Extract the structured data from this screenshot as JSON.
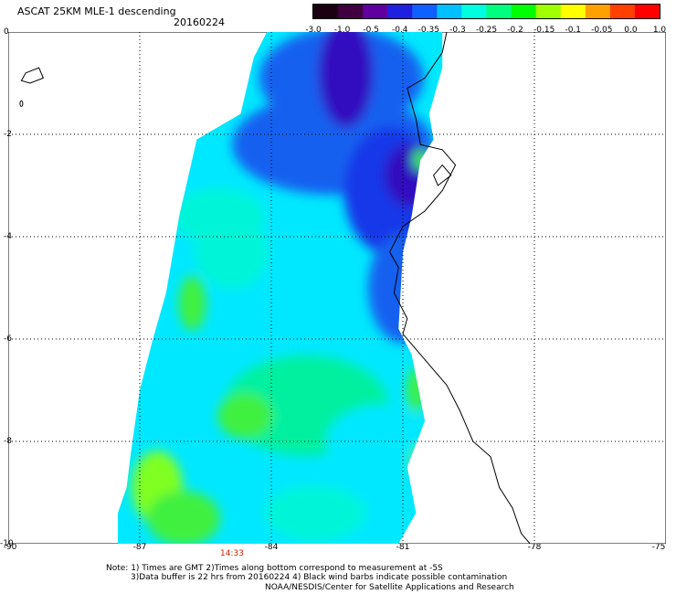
{
  "title": "ASCAT 25KM MLE-1 descending",
  "date": "20160224",
  "colorbar": {
    "labels": [
      "-3.0",
      "-1.0",
      "-0.5",
      "-0.4",
      "-0.35",
      "-0.3",
      "-0.25",
      "-0.2",
      "-0.15",
      "-0.1",
      "-0.05",
      "0.0",
      "1.0"
    ],
    "colors": [
      "#1a0010",
      "#400040",
      "#6000a0",
      "#2020e0",
      "#1060ff",
      "#00c0ff",
      "#00ffe0",
      "#00ff80",
      "#00ff00",
      "#a0ff00",
      "#ffff00",
      "#ffa000",
      "#ff4000",
      "#ff0000"
    ]
  },
  "map": {
    "lat_ticks": [
      "0",
      "-2",
      "-4",
      "-6",
      "-8",
      "-10"
    ],
    "lon_ticks": [
      "-90",
      "-87",
      "-84",
      "-81",
      "-78",
      "-75"
    ],
    "lat_range": [
      -10,
      0
    ],
    "lon_range": [
      -90,
      -75
    ],
    "grid": "dotted",
    "field_colors": {
      "deep": "#3010c0",
      "dark_blue": "#1838e8",
      "blue": "#1660f0",
      "cyan": "#00e8ff",
      "aqua": "#00f5d8",
      "green_cyan": "#00f0a0",
      "green": "#40f040",
      "lime": "#80ff20"
    }
  },
  "time_label": "14:33",
  "notes": {
    "line1": "Note: 1) Times are GMT 2)Times along bottom correspond to measurement at -5S",
    "line2": "3)Data buffer is 22 hrs from 20160224 4) Black wind barbs indicate possible contamination",
    "line3": "NOAA/NESDIS/Center for Satellite Applications and Research"
  }
}
